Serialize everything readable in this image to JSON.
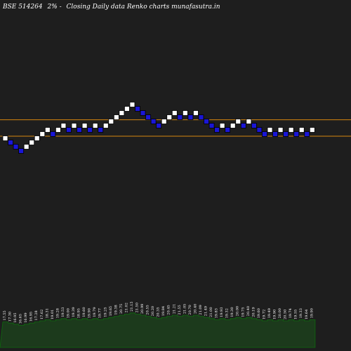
{
  "header": {
    "symbol": "BSE 514264",
    "box_size": "2%",
    "reversal_marker": "-",
    "caption": "Closing Daily data  Renko  charts munafasutra.in"
  },
  "colors": {
    "background": "#1e1e1e",
    "up_brick": "#ffffff",
    "down_brick": "#1a16d6",
    "brick_outline": "#000000",
    "level_line": "#d6860f",
    "volume_fill": "#1c3a1c",
    "volume_stroke": "#0d6b0d",
    "text": "#ffffff"
  },
  "chart_data": {
    "type": "renko",
    "title": "BSE 514264 2%-- Closing Daily data Renko charts munafasutra.in",
    "xlabel": "",
    "ylabel": "",
    "grid": false,
    "legend": "none",
    "bricks": [
      {
        "dir": "up",
        "label": "17.55"
      },
      {
        "dir": "down",
        "label": "17.30"
      },
      {
        "dir": "down",
        "label": "16.95"
      },
      {
        "dir": "down",
        "label": "16.65"
      },
      {
        "dir": "up",
        "label": "16.99"
      },
      {
        "dir": "up",
        "label": "16.95"
      },
      {
        "dir": "up",
        "label": "17.28"
      },
      {
        "dir": "up",
        "label": "17.62"
      },
      {
        "dir": "up",
        "label": "18.31"
      },
      {
        "dir": "down",
        "label": "19.01"
      },
      {
        "dir": "up",
        "label": "19.28"
      },
      {
        "dir": "up",
        "label": "19.53"
      },
      {
        "dir": "down",
        "label": "19.00"
      },
      {
        "dir": "up",
        "label": "19.39"
      },
      {
        "dir": "down",
        "label": "18.95"
      },
      {
        "dir": "up",
        "label": "19.60"
      },
      {
        "dir": "down",
        "label": "19.90"
      },
      {
        "dir": "up",
        "label": "19.79"
      },
      {
        "dir": "down",
        "label": "19.77"
      },
      {
        "dir": "up",
        "label": "19.25"
      },
      {
        "dir": "up",
        "label": "19.65"
      },
      {
        "dir": "up",
        "label": "19.38"
      },
      {
        "dir": "up",
        "label": "20.75"
      },
      {
        "dir": "up",
        "label": "21.02"
      },
      {
        "dir": "up",
        "label": "21.15"
      },
      {
        "dir": "down",
        "label": "21.50"
      },
      {
        "dir": "down",
        "label": "20.99"
      },
      {
        "dir": "down",
        "label": "20.55"
      },
      {
        "dir": "down",
        "label": "20.20"
      },
      {
        "dir": "down",
        "label": "20.35"
      },
      {
        "dir": "up",
        "label": "19.84"
      },
      {
        "dir": "up",
        "label": "20.45"
      },
      {
        "dir": "up",
        "label": "21.21"
      },
      {
        "dir": "down",
        "label": "21.55"
      },
      {
        "dir": "up",
        "label": "21.05"
      },
      {
        "dir": "down",
        "label": "20.70"
      },
      {
        "dir": "up",
        "label": "20.40"
      },
      {
        "dir": "down",
        "label": "21.09"
      },
      {
        "dir": "down",
        "label": "21.49"
      },
      {
        "dir": "down",
        "label": "21.00"
      },
      {
        "dir": "down",
        "label": "19.83"
      },
      {
        "dir": "up",
        "label": "19.93"
      },
      {
        "dir": "down",
        "label": "19.32"
      },
      {
        "dir": "up",
        "label": "19.30"
      },
      {
        "dir": "up",
        "label": "20.00"
      },
      {
        "dir": "down",
        "label": "19.75"
      },
      {
        "dir": "up",
        "label": "20.40"
      },
      {
        "dir": "down",
        "label": "20.19"
      },
      {
        "dir": "down",
        "label": "19.60"
      },
      {
        "dir": "down",
        "label": "19.72"
      },
      {
        "dir": "up",
        "label": "19.49"
      },
      {
        "dir": "down",
        "label": "19.90"
      },
      {
        "dir": "up",
        "label": "20.00"
      },
      {
        "dir": "down",
        "label": "20.50"
      },
      {
        "dir": "up",
        "label": "19.74"
      },
      {
        "dir": "down",
        "label": "19.55"
      },
      {
        "dir": "up",
        "label": "19.33"
      },
      {
        "dir": "down",
        "label": "19.64"
      },
      {
        "dir": "up",
        "label": "19.90"
      }
    ],
    "levels": [
      21.5,
      19.9
    ]
  }
}
